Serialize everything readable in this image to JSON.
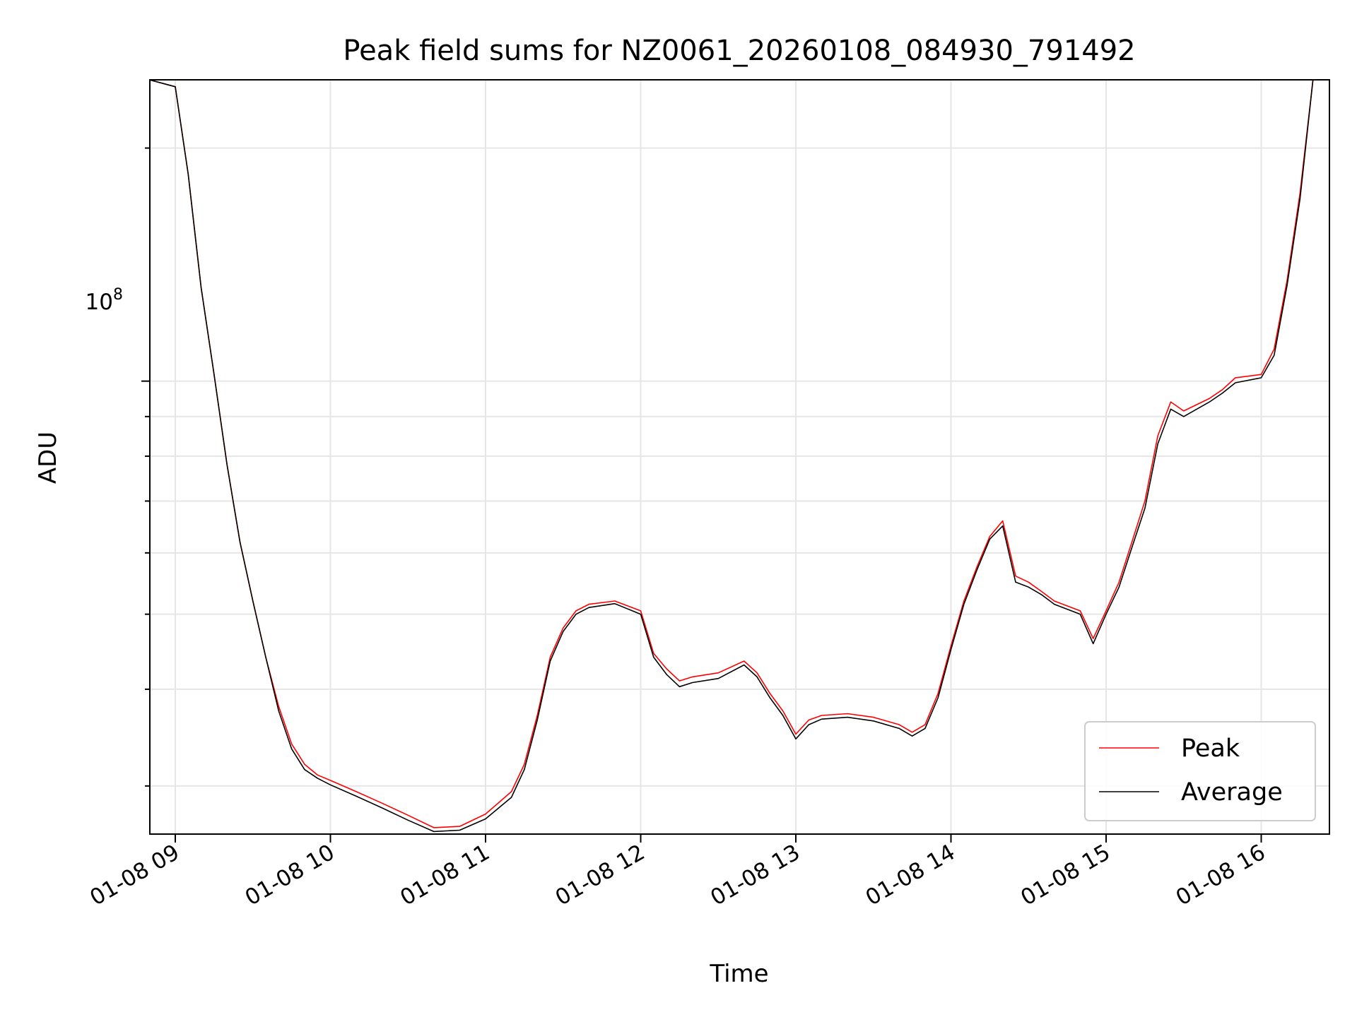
{
  "chart_data": {
    "type": "line",
    "title": "Peak field sums for NZ0061_20260108_084930_791492",
    "xlabel": "Time",
    "ylabel": "ADU",
    "x_ticks": [
      "01-08 09",
      "01-08 10",
      "01-08 11",
      "01-08 12",
      "01-08 13",
      "01-08 14",
      "01-08 15",
      "01-08 16"
    ],
    "y_tick_label": "10^8",
    "y_scale": "log",
    "ylim": [
      26000000,
      245000000
    ],
    "x": [
      "08:50",
      "09:00",
      "09:05",
      "09:10",
      "09:15",
      "09:20",
      "09:25",
      "09:30",
      "09:35",
      "09:40",
      "09:45",
      "09:50",
      "09:55",
      "10:00",
      "10:10",
      "10:20",
      "10:30",
      "10:40",
      "10:50",
      "11:00",
      "11:10",
      "11:15",
      "11:20",
      "11:25",
      "11:30",
      "11:35",
      "11:40",
      "11:50",
      "12:00",
      "12:05",
      "12:10",
      "12:15",
      "12:20",
      "12:30",
      "12:40",
      "12:45",
      "12:50",
      "12:55",
      "13:00",
      "13:05",
      "13:10",
      "13:20",
      "13:30",
      "13:40",
      "13:45",
      "13:50",
      "13:55",
      "14:00",
      "14:05",
      "14:10",
      "14:15",
      "14:20",
      "14:25",
      "14:30",
      "14:35",
      "14:40",
      "14:50",
      "14:55",
      "15:00",
      "15:05",
      "15:10",
      "15:15",
      "15:20",
      "15:25",
      "15:30",
      "15:40",
      "15:45",
      "15:50",
      "16:00",
      "16:05",
      "16:10",
      "16:15",
      "16:20"
    ],
    "series": [
      {
        "name": "Peak",
        "color": "#ff0000",
        "values": [
          245000000,
          240000000,
          185000000,
          132000000,
          102000000,
          78000000,
          62000000,
          52000000,
          44000000,
          38000000,
          34000000,
          32000000,
          31000000,
          30500000,
          29500000,
          28500000,
          27500000,
          26500000,
          26600000,
          27600000,
          29500000,
          32000000,
          37000000,
          44000000,
          48000000,
          50500000,
          51500000,
          52000000,
          50500000,
          44500000,
          42500000,
          41000000,
          41500000,
          42000000,
          43500000,
          42000000,
          39500000,
          37500000,
          35000000,
          36500000,
          37000000,
          37200000,
          36800000,
          36000000,
          35200000,
          36000000,
          39500000,
          45500000,
          52000000,
          57500000,
          63000000,
          66000000,
          56000000,
          55000000,
          53500000,
          52000000,
          50500000,
          46500000,
          50500000,
          55000000,
          62000000,
          70000000,
          85000000,
          94000000,
          91500000,
          95000000,
          97500000,
          101000000,
          102000000,
          110000000,
          135000000,
          175000000,
          245000000
        ]
      },
      {
        "name": "Average",
        "color": "#000000",
        "values": [
          245000000,
          240000000,
          185000000,
          132000000,
          102000000,
          78000000,
          62000000,
          52000000,
          44000000,
          37500000,
          33500000,
          31500000,
          30700000,
          30100000,
          29100000,
          28100000,
          27100000,
          26200000,
          26300000,
          27200000,
          29000000,
          31500000,
          36500000,
          43500000,
          47500000,
          50000000,
          51000000,
          51600000,
          50000000,
          44000000,
          41800000,
          40300000,
          40800000,
          41300000,
          43000000,
          41500000,
          39000000,
          37000000,
          34500000,
          36000000,
          36600000,
          36800000,
          36400000,
          35600000,
          34800000,
          35600000,
          39000000,
          45000000,
          51500000,
          57000000,
          62500000,
          65000000,
          55000000,
          54200000,
          53000000,
          51500000,
          50000000,
          45800000,
          50000000,
          54200000,
          61000000,
          68500000,
          83000000,
          92000000,
          90000000,
          94000000,
          96500000,
          99500000,
          101000000,
          108000000,
          133000000,
          172000000,
          245000000
        ]
      }
    ],
    "grid": true,
    "legend_position": "lower-right"
  }
}
